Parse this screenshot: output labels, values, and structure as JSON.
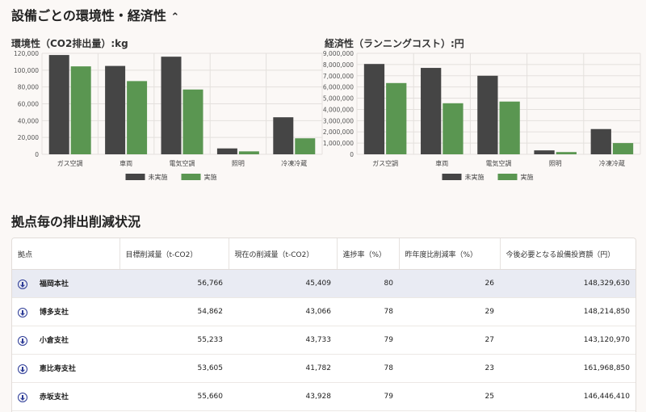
{
  "page": {
    "section1_title": "設備ごとの環境性・経済性",
    "section1_caret": "⌃",
    "section2_title": "拠点毎の排出削減状況"
  },
  "colors": {
    "before": "#454545",
    "after": "#5a9651",
    "grid": "#e4e0dd"
  },
  "chart_data": [
    {
      "type": "bar",
      "title": "環境性（CO2排出量）:kg",
      "categories": [
        "ガス空調",
        "車両",
        "電気空調",
        "照明",
        "冷凍冷蔵"
      ],
      "series": [
        {
          "name": "未実施",
          "values": [
            118000,
            105000,
            116000,
            7000,
            44000
          ]
        },
        {
          "name": "実施",
          "values": [
            104500,
            87000,
            77000,
            3500,
            19000
          ]
        }
      ],
      "ylim": [
        0,
        120000
      ],
      "yticks": [
        0,
        20000,
        40000,
        60000,
        80000,
        100000,
        120000
      ],
      "ytick_labels": [
        "0",
        "20,000",
        "40,000",
        "60,000",
        "80,000",
        "100,000",
        "120,000"
      ],
      "legend": "bottom"
    },
    {
      "type": "bar",
      "title": "経済性（ランニングコスト）:円",
      "categories": [
        "ガス空調",
        "車両",
        "電気空調",
        "照明",
        "冷凍冷蔵"
      ],
      "series": [
        {
          "name": "未実施",
          "values": [
            8050000,
            7700000,
            7000000,
            350000,
            2250000
          ]
        },
        {
          "name": "実施",
          "values": [
            6350000,
            4550000,
            4700000,
            200000,
            1000000
          ]
        }
      ],
      "ylim": [
        0,
        9000000
      ],
      "yticks": [
        0,
        1000000,
        2000000,
        3000000,
        4000000,
        5000000,
        6000000,
        7000000,
        8000000,
        9000000
      ],
      "ytick_labels": [
        "0",
        "1,000,000",
        "2,000,000",
        "3,000,000",
        "4,000,000",
        "5,000,000",
        "6,000,000",
        "7,000,000",
        "8,000,000",
        "9,000,000"
      ],
      "legend": "bottom"
    }
  ],
  "table": {
    "headers": [
      "拠点",
      "目標削減量（t-CO2）",
      "現在の削減量（t-CO2）",
      "進捗率（%）",
      "昨年度比削減率（%）",
      "今後必要となる設備投資額（円）"
    ],
    "rows": [
      {
        "name": "福岡本社",
        "target": "56,766",
        "current": "45,409",
        "progress": "80",
        "yoy": "26",
        "investment": "148,329,630",
        "selected": true
      },
      {
        "name": "博多支社",
        "target": "54,862",
        "current": "43,066",
        "progress": "78",
        "yoy": "29",
        "investment": "148,214,850"
      },
      {
        "name": "小倉支社",
        "target": "55,233",
        "current": "43,733",
        "progress": "79",
        "yoy": "27",
        "investment": "143,120,970"
      },
      {
        "name": "恵比寿支社",
        "target": "53,605",
        "current": "41,782",
        "progress": "78",
        "yoy": "23",
        "investment": "161,968,850"
      },
      {
        "name": "赤坂支社",
        "target": "55,660",
        "current": "43,928",
        "progress": "79",
        "yoy": "25",
        "investment": "146,446,410"
      }
    ]
  }
}
